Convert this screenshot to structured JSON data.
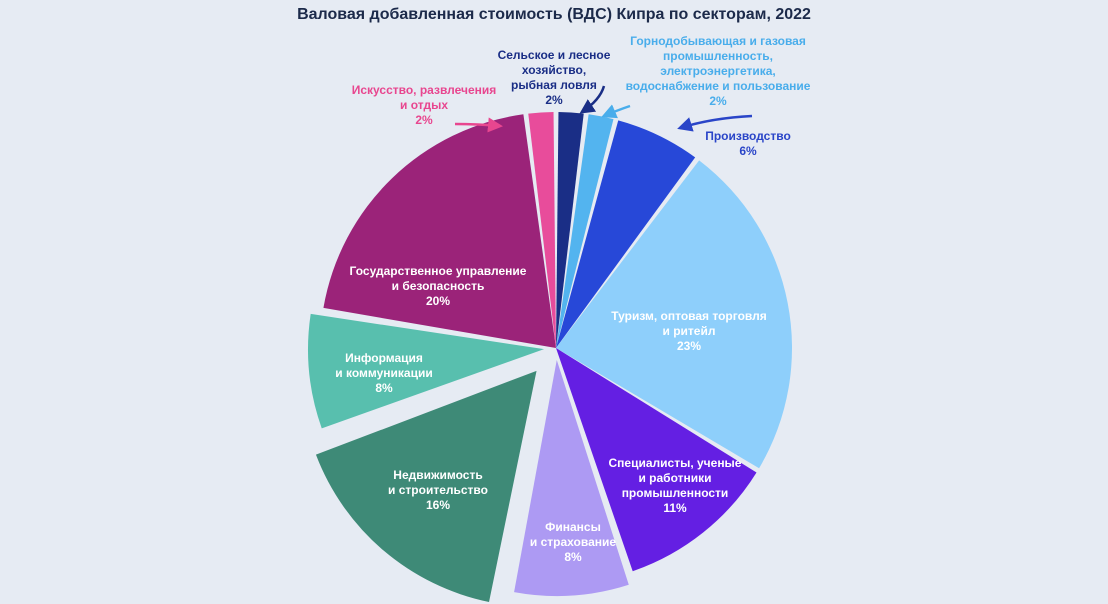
{
  "chart_data": {
    "type": "pie",
    "title": "Валовая добавленная стоимость (ВДС) Кипра по секторам, 2022",
    "slices": [
      {
        "id": "agriculture",
        "label_lines": [
          "Сельское и лесное",
          "хозяйство,",
          "рыбная ловля"
        ],
        "pct_label": "2%",
        "value": 2,
        "color": "#1a2e86",
        "text_color": "#1a2e86"
      },
      {
        "id": "mining",
        "label_lines": [
          "Горнодобывающая и газовая",
          "промышленность,",
          "электроэнергетика,",
          "водоснабжение и пользование"
        ],
        "pct_label": "2%",
        "value": 2,
        "color": "#53b4ef",
        "text_color": "#49adeb"
      },
      {
        "id": "manufacturing",
        "label_lines": [
          "Производство"
        ],
        "pct_label": "6%",
        "value": 6,
        "color": "#2748d8",
        "text_color": "#2a45c8"
      },
      {
        "id": "tourism",
        "label_lines": [
          "Туризм, оптовая торговля",
          "и ритейл"
        ],
        "pct_label": "23%",
        "value": 23,
        "color": "#8ecffb",
        "text_color": "#ffffff"
      },
      {
        "id": "professionals",
        "label_lines": [
          "Специалисты, ученые",
          "и работники",
          "промышленности"
        ],
        "pct_label": "11%",
        "value": 11,
        "color": "#641fe3",
        "text_color": "#ffffff"
      },
      {
        "id": "finance",
        "label_lines": [
          "Финансы",
          "и страхование"
        ],
        "pct_label": "8%",
        "value": 8,
        "color": "#ad9af3",
        "text_color": "#ffffff"
      },
      {
        "id": "real-estate",
        "label_lines": [
          "Недвижимость",
          "и строительство"
        ],
        "pct_label": "16%",
        "value": 16,
        "color": "#3e8a77",
        "text_color": "#ffffff"
      },
      {
        "id": "ict",
        "label_lines": [
          "Информация",
          "и коммуникации"
        ],
        "pct_label": "8%",
        "value": 8,
        "color": "#58bfae",
        "text_color": "#ffffff"
      },
      {
        "id": "public-admin",
        "label_lines": [
          "Государственное управление",
          "и безопасность"
        ],
        "pct_label": "20%",
        "value": 20,
        "color": "#9b2379",
        "text_color": "#ffffff"
      },
      {
        "id": "arts",
        "label_lines": [
          "Искусство, развлечения",
          "и отдых"
        ],
        "pct_label": "2%",
        "value": 2,
        "color": "#e84c9b",
        "text_color": "#e8468f"
      }
    ],
    "exploded": [
      "finance",
      "real-estate",
      "ict"
    ],
    "legend": "none"
  }
}
